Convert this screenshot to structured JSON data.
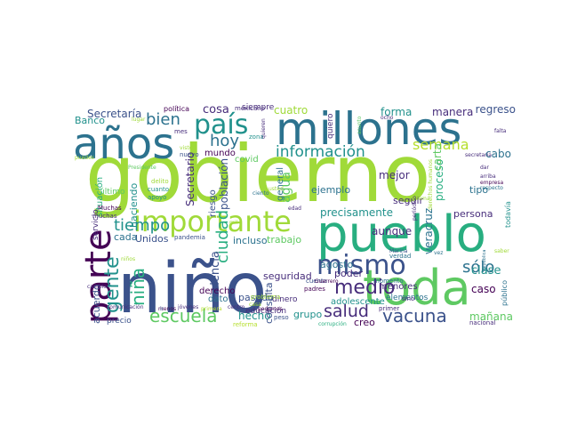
{
  "word_cloud": {
    "palette": [
      "#440154",
      "#3b528b",
      "#21918c",
      "#5ec962",
      "#a0da39",
      "#2c728e",
      "#28ae80",
      "#472d7b",
      "#fde725",
      "#b5de2b"
    ],
    "words": [
      {
        "text": "gobierno",
        "color": "#a0da39"
      },
      {
        "text": "niño",
        "color": "#3b528b"
      },
      {
        "text": "millones",
        "color": "#2c728e"
      },
      {
        "text": "pueblo",
        "color": "#28ae80"
      },
      {
        "text": "años",
        "color": "#2c728e"
      },
      {
        "text": "toda",
        "color": "#5ec962"
      },
      {
        "text": "país",
        "color": "#21918c"
      },
      {
        "text": "importante",
        "color": "#a0da39"
      },
      {
        "text": "parte",
        "color": "#440154"
      },
      {
        "text": "mismo",
        "color": "#3b528b"
      },
      {
        "text": "información",
        "color": "#21918c"
      },
      {
        "text": "escuela",
        "color": "#5ec962"
      },
      {
        "text": "vacuna",
        "color": "#3b528b"
      },
      {
        "text": "salud",
        "color": "#472d7b"
      },
      {
        "text": "medio",
        "color": "#472d7b"
      },
      {
        "text": "tiempo",
        "color": "#21918c"
      },
      {
        "text": "hoy",
        "color": "#2c728e"
      },
      {
        "text": "bien",
        "color": "#2c728e"
      },
      {
        "text": "semana",
        "color": "#b5de2b"
      },
      {
        "text": "gente",
        "color": "#21918c"
      },
      {
        "text": "niña",
        "color": "#28ae80"
      },
      {
        "text": "ciudad",
        "color": "#28ae80"
      },
      {
        "text": "sólo",
        "color": "#2c728e"
      },
      {
        "text": "agua",
        "color": "#5ec962"
      },
      {
        "text": "cosa",
        "color": "#472d7b"
      },
      {
        "text": "cuatro",
        "color": "#a0da39"
      },
      {
        "text": "forma",
        "color": "#21918c"
      },
      {
        "text": "manera",
        "color": "#472d7b"
      },
      {
        "text": "regreso",
        "color": "#3b528b"
      },
      {
        "text": "Secretaría",
        "color": "#3b528b"
      },
      {
        "text": "Banco",
        "color": "#21918c"
      },
      {
        "text": "precisamente",
        "color": "#21918c"
      },
      {
        "text": "mejor",
        "color": "#472d7b"
      },
      {
        "text": "aunque",
        "color": "#472d7b"
      },
      {
        "text": "ejemplo",
        "color": "#2c728e"
      },
      {
        "text": "seguir",
        "color": "#472d7b"
      },
      {
        "text": "proceso",
        "color": "#28ae80"
      },
      {
        "text": "cabo",
        "color": "#2c728e"
      },
      {
        "text": "tipo",
        "color": "#2c728e"
      },
      {
        "text": "persona",
        "color": "#472d7b"
      },
      {
        "text": "clase",
        "color": "#21918c"
      },
      {
        "text": "caso",
        "color": "#440154"
      },
      {
        "text": "mañana",
        "color": "#5ec962"
      },
      {
        "text": "creo",
        "color": "#440154"
      },
      {
        "text": "grupo",
        "color": "#21918c"
      },
      {
        "text": "hecho",
        "color": "#21918c"
      },
      {
        "text": "pasado",
        "color": "#3b528b"
      },
      {
        "text": "violencia",
        "color": "#3b528b"
      },
      {
        "text": "acuerdo",
        "color": "#3b528b"
      },
      {
        "text": "situación",
        "color": "#28ae80"
      },
      {
        "text": "servicio",
        "color": "#472d7b"
      },
      {
        "text": "Unidos",
        "color": "#3b528b"
      },
      {
        "text": "cada",
        "color": "#2c728e"
      },
      {
        "text": "seguridad",
        "color": "#472d7b"
      },
      {
        "text": "trabajo",
        "color": "#5ec962"
      },
      {
        "text": "incluso",
        "color": "#2c728e"
      },
      {
        "text": "agosto",
        "color": "#2c728e"
      },
      {
        "text": "poder",
        "color": "#472d7b"
      },
      {
        "text": "adolescente",
        "color": "#21918c"
      },
      {
        "text": "veracruz",
        "color": "#2c728e"
      },
      {
        "text": "carta",
        "color": "#5ec962"
      },
      {
        "text": "Secretario",
        "color": "#472d7b"
      },
      {
        "text": "población",
        "color": "#3b528b"
      },
      {
        "text": "riesgo",
        "color": "#3b528b"
      },
      {
        "text": "haciendo",
        "color": "#21918c"
      },
      {
        "text": "mundo",
        "color": "#440154"
      },
      {
        "text": "covid",
        "color": "#5ec962"
      },
      {
        "text": "general",
        "color": "#2c728e"
      },
      {
        "text": "siempre",
        "color": "#472d7b"
      },
      {
        "text": "quiero",
        "color": "#472d7b"
      },
      {
        "text": "consulta",
        "color": "#3b528b"
      },
      {
        "text": "derecho",
        "color": "#440154"
      },
      {
        "text": "dato",
        "color": "#2c728e"
      },
      {
        "text": "dinero",
        "color": "#472d7b"
      },
      {
        "text": "menores",
        "color": "#472d7b"
      },
      {
        "text": "elementos",
        "color": "#2c728e"
      },
      {
        "text": "educación",
        "color": "#472d7b"
      },
      {
        "text": "política",
        "color": "#440154"
      },
      {
        "text": "nuevo",
        "color": "#3b528b"
      },
      {
        "text": "mexicano",
        "color": "#472d7b"
      },
      {
        "text": "zona",
        "color": "#21918c"
      },
      {
        "text": "mes",
        "color": "#472d7b"
      },
      {
        "text": "último",
        "color": "#5ec962"
      },
      {
        "text": "cuanto",
        "color": "#21918c"
      },
      {
        "text": "apoyo",
        "color": "#21918c"
      },
      {
        "text": "delito",
        "color": "#a0da39"
      },
      {
        "text": "Muchas",
        "color": "#440154"
      },
      {
        "text": "muchas",
        "color": "#472d7b"
      },
      {
        "text": "pandemia",
        "color": "#3b528b"
      },
      {
        "text": "problema",
        "color": "#a0da39"
      },
      {
        "text": "padres",
        "color": "#440154"
      },
      {
        "text": "cuenta",
        "color": "#3b528b"
      },
      {
        "text": "Guerrero",
        "color": "#440154"
      },
      {
        "text": "verdad",
        "color": "#2c728e"
      },
      {
        "text": "momento",
        "color": "#2c728e"
      },
      {
        "text": "Marina",
        "color": "#3b528b"
      },
      {
        "text": "primer",
        "color": "#472d7b"
      },
      {
        "text": "sino",
        "color": "#472d7b"
      },
      {
        "text": "público",
        "color": "#2c728e"
      },
      {
        "text": "nacional",
        "color": "#472d7b"
      },
      {
        "text": "todavía",
        "color": "#21918c"
      },
      {
        "text": "reforma",
        "color": "#b5de2b"
      },
      {
        "text": "corrupción",
        "color": "#28ae80"
      },
      {
        "text": "peso",
        "color": "#3b528b"
      },
      {
        "text": "precio",
        "color": "#3b528b"
      },
      {
        "text": "comunicación",
        "color": "#472d7b"
      },
      {
        "text": "jóvenes",
        "color": "#472d7b"
      },
      {
        "text": "centro",
        "color": "#472d7b"
      },
      {
        "text": "menos",
        "color": "#440154"
      },
      {
        "text": "primera",
        "color": "#b5de2b"
      },
      {
        "text": "podemos",
        "color": "#440154"
      },
      {
        "text": "edad",
        "color": "#472d7b"
      },
      {
        "text": "puedes",
        "color": "#a0da39"
      },
      {
        "text": "Presidente",
        "color": "#5ec962"
      },
      {
        "text": "cambio",
        "color": "#472d7b"
      },
      {
        "text": "niños",
        "color": "#a0da39"
      },
      {
        "text": "derechos humanos",
        "color": "#a0da39"
      },
      {
        "text": "periódico",
        "color": "#472d7b"
      },
      {
        "text": "falta",
        "color": "#472d7b"
      },
      {
        "text": "arriba",
        "color": "#472d7b"
      },
      {
        "text": "empresa",
        "color": "#440154"
      },
      {
        "text": "respecto",
        "color": "#2c728e"
      },
      {
        "text": "dar",
        "color": "#472d7b"
      },
      {
        "text": "secretaria",
        "color": "#472d7b"
      },
      {
        "text": "República",
        "color": "#2c728e"
      },
      {
        "text": "ocho",
        "color": "#472d7b"
      },
      {
        "text": "asunto",
        "color": "#5ec962"
      },
      {
        "text": "quieren",
        "color": "#472d7b"
      },
      {
        "text": "vez",
        "color": "#2c728e"
      },
      {
        "text": "ir",
        "color": "#3b528b"
      },
      {
        "text": "lugar",
        "color": "#a0da39"
      },
      {
        "text": "usted",
        "color": "#a0da39"
      },
      {
        "text": "ciento",
        "color": "#2c728e"
      },
      {
        "text": "visto",
        "color": "#a0da39"
      },
      {
        "text": "mil",
        "color": "#a0da39"
      },
      {
        "text": "casa",
        "color": "#a0da39"
      },
      {
        "text": "tema",
        "color": "#a0da39"
      },
      {
        "text": "saber",
        "color": "#a0da39"
      }
    ]
  }
}
